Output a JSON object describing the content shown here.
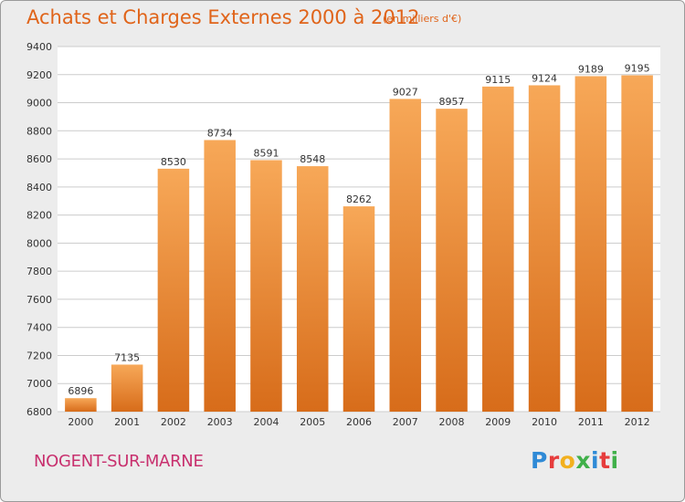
{
  "title": "Achats et Charges Externes 2000 à 2012",
  "unit_note": "(en milliers d'€)",
  "location": "NOGENT-SUR-MARNE",
  "logo": {
    "letters": [
      "P",
      "r",
      "o",
      "x",
      "i",
      "t",
      "i"
    ],
    "colors": [
      "#2f8ad6",
      "#e63d3d",
      "#f2b01e",
      "#40b04a",
      "#2f8ad6",
      "#e63d3d",
      "#40b04a"
    ]
  },
  "colors": {
    "bar_top": "#f7a858",
    "bar_bottom": "#d76c1a",
    "plot_bg": "#ffffff",
    "grid": "#cccccc",
    "text": "#333333"
  },
  "chart_data": {
    "type": "bar",
    "categories": [
      "2000",
      "2001",
      "2002",
      "2003",
      "2004",
      "2005",
      "2006",
      "2007",
      "2008",
      "2009",
      "2010",
      "2011",
      "2012"
    ],
    "values": [
      6896,
      7135,
      8530,
      8734,
      8591,
      8548,
      8262,
      9027,
      8957,
      9115,
      9124,
      9189,
      9195
    ],
    "ylim": [
      6800,
      9400
    ],
    "yticks": [
      6800,
      7000,
      7200,
      7400,
      7600,
      7800,
      8000,
      8200,
      8400,
      8600,
      8800,
      9000,
      9200,
      9400
    ],
    "grid": true,
    "xlabel": "",
    "ylabel": ""
  }
}
